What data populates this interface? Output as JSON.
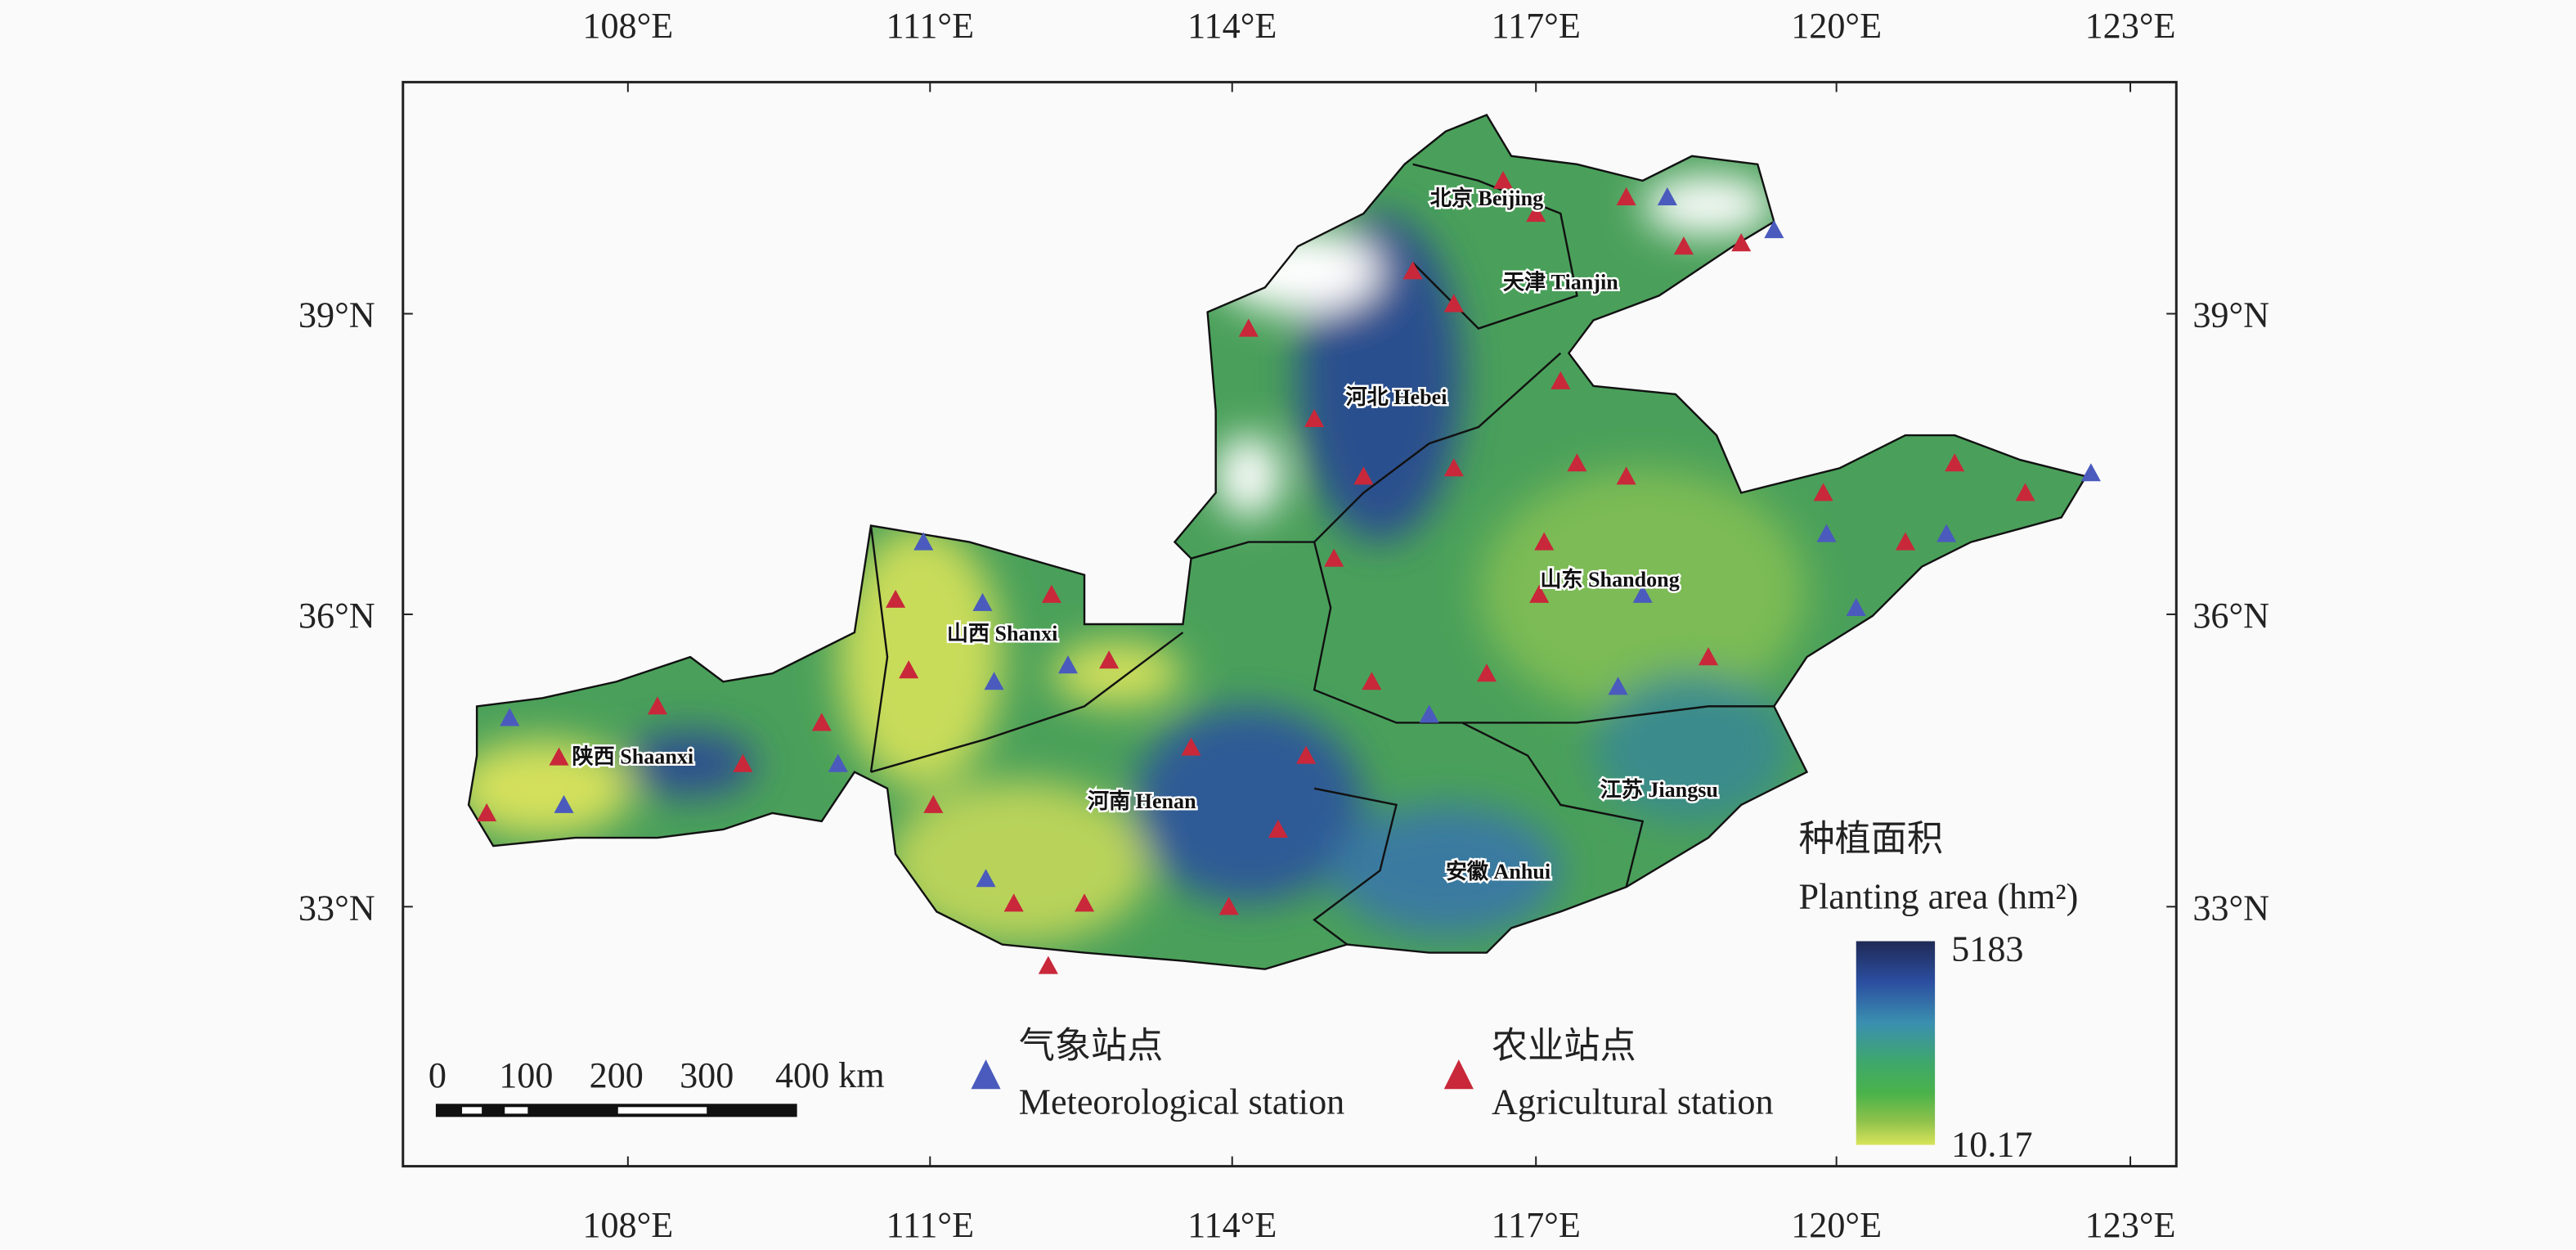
{
  "map": {
    "lon_ticks": [
      "108°E",
      "111°E",
      "114°E",
      "117°E",
      "120°E",
      "123°E"
    ],
    "lat_ticks": [
      "39°N",
      "36°N",
      "33°N"
    ],
    "provinces": [
      "北京 Beijing",
      "天津 Tianjin",
      "河北 Hebei",
      "山东 Shandong",
      "山西 Shanxi",
      "陕西 Shaanxi",
      "河南 Henan",
      "江苏 Jiangsu",
      "安徽 Anhui"
    ],
    "legend": {
      "title_zh": "种植面积",
      "title_en": "Planting area (hm²)",
      "max": 5183,
      "min": 10.17,
      "meteorological_zh": "气象站点",
      "meteorological_en": "Meteorological station",
      "agricultural_zh": "农业站点",
      "agricultural_en": "Agricultural station"
    },
    "scale_bar": [
      "0",
      "100",
      "200",
      "300",
      "400 km"
    ]
  }
}
